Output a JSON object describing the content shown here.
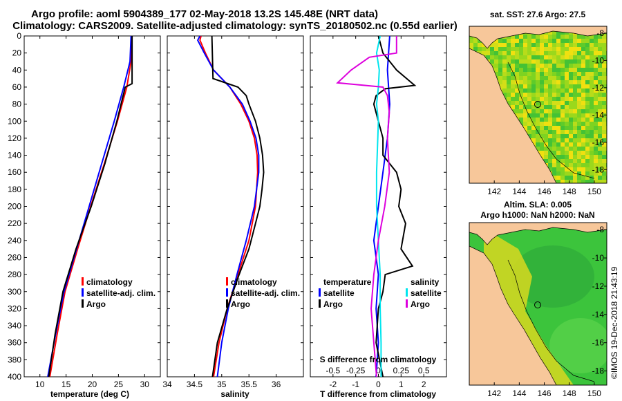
{
  "title": {
    "line1": "Argo profile: aoml 5904389_177 02-May-2018 13.2S 145.48E (NRT data)",
    "line2": "Climatology: CARS2009. Satellite-adjusted climatology: synTS_20180502.nc (0.55d earlier)"
  },
  "watermark": "©IMOS 19-Dec-2018 21:43:19",
  "colors": {
    "climatology": "#ff0000",
    "satellite": "#0000ff",
    "argo": "#000000",
    "sal_argo": "#dd00dd",
    "sal_sat": "#00e5ee",
    "land": "#f7c79a"
  },
  "chart_data": [
    {
      "type": "line",
      "xlabel": "temperature (deg C)",
      "ylabel": "",
      "xlim": [
        7,
        33
      ],
      "ylim": [
        400,
        0
      ],
      "xticks": [
        10,
        15,
        20,
        25,
        30
      ],
      "yticks": [
        0,
        20,
        40,
        60,
        80,
        100,
        120,
        140,
        160,
        180,
        200,
        220,
        240,
        260,
        280,
        300,
        320,
        340,
        360,
        380,
        400
      ],
      "legend": [
        "climatology",
        "satellite-adj. clim.",
        "Argo"
      ],
      "series": [
        {
          "name": "climatology",
          "depth": [
            0,
            30,
            60,
            100,
            150,
            200,
            250,
            300,
            350,
            400
          ],
          "values": [
            27.6,
            27.4,
            26.6,
            24.8,
            22.3,
            19.7,
            17.2,
            14.8,
            13.3,
            11.9
          ]
        },
        {
          "name": "satellite-adj. clim.",
          "depth": [
            0,
            30,
            60,
            100,
            150,
            200,
            250,
            300,
            350,
            400
          ],
          "values": [
            27.4,
            27.2,
            26.0,
            24.2,
            21.8,
            19.4,
            17.0,
            14.6,
            13.0,
            11.5
          ]
        },
        {
          "name": "Argo",
          "depth": [
            0,
            50,
            56,
            60,
            100,
            150,
            200,
            250,
            300,
            350,
            400
          ],
          "values": [
            27.6,
            27.6,
            27.6,
            26.3,
            24.7,
            22.4,
            19.8,
            16.9,
            14.4,
            12.9,
            11.7
          ]
        }
      ]
    },
    {
      "type": "line",
      "xlabel": "salinity",
      "xlim": [
        34,
        36.5
      ],
      "ylim": [
        400,
        0
      ],
      "xticks": [
        34,
        34.5,
        35,
        35.5,
        36
      ],
      "legend": [
        "climatology",
        "satellite-adj. clim.",
        "Argo"
      ],
      "series": [
        {
          "name": "climatology",
          "depth": [
            0,
            5,
            20,
            40,
            60,
            80,
            100,
            120,
            140,
            160,
            200,
            240,
            280,
            320,
            360,
            400
          ],
          "values": [
            34.62,
            34.6,
            34.7,
            34.85,
            35.15,
            35.35,
            35.5,
            35.6,
            35.65,
            35.66,
            35.62,
            35.5,
            35.3,
            35.1,
            34.95,
            34.85
          ]
        },
        {
          "name": "satellite-adj. clim.",
          "depth": [
            0,
            5,
            20,
            40,
            60,
            80,
            100,
            120,
            140,
            160,
            200,
            240,
            280,
            320,
            360,
            400
          ],
          "values": [
            34.6,
            34.56,
            34.68,
            34.85,
            35.15,
            35.38,
            35.52,
            35.63,
            35.68,
            35.68,
            35.6,
            35.45,
            35.28,
            35.12,
            35.0,
            34.92
          ]
        },
        {
          "name": "Argo",
          "depth": [
            0,
            25,
            50,
            60,
            70,
            80,
            100,
            120,
            140,
            160,
            180,
            200,
            220,
            250,
            280,
            320,
            360,
            400
          ],
          "values": [
            34.82,
            34.83,
            34.84,
            35.3,
            35.45,
            35.5,
            35.62,
            35.7,
            35.75,
            35.77,
            35.74,
            35.7,
            35.62,
            35.5,
            35.32,
            35.1,
            34.92,
            34.83
          ]
        }
      ]
    },
    {
      "type": "line",
      "xlabel": "T difference from climatology",
      "xlabel_top": "S difference from climatology",
      "xlim": [
        -3,
        3
      ],
      "ylim": [
        400,
        0
      ],
      "xticks": [
        -2,
        -1,
        0,
        1,
        2
      ],
      "xticks_top": [
        -0.5,
        -0.25,
        0,
        0.25,
        0.5
      ],
      "xlim_top": [
        -0.75,
        0.75
      ],
      "legend": [
        "temperature",
        "satellite",
        "Argo",
        "salinity",
        "satellite",
        "Argo"
      ],
      "series": [
        {
          "name": "T satellite",
          "axis": "bottom",
          "depth": [
            0,
            40,
            80,
            120,
            160,
            200,
            240,
            280,
            320,
            360,
            400
          ],
          "values": [
            0.5,
            0.4,
            0.5,
            0.4,
            0.2,
            0.0,
            -0.2,
            0.0,
            -0.1,
            0.0,
            -0.1
          ]
        },
        {
          "name": "T Argo",
          "axis": "bottom",
          "depth": [
            0,
            20,
            40,
            58,
            62,
            70,
            80,
            100,
            120,
            140,
            160,
            180,
            200,
            220,
            250,
            270,
            280,
            300,
            320,
            360,
            400
          ],
          "values": [
            0.0,
            0.2,
            0.8,
            1.6,
            0.3,
            -0.1,
            -0.2,
            0.0,
            0.2,
            0.2,
            0.8,
            1.0,
            0.9,
            1.2,
            1.0,
            1.5,
            0.3,
            0.2,
            0.0,
            -0.1,
            0.2
          ]
        },
        {
          "name": "S satellite",
          "axis": "top",
          "depth": [
            0,
            20,
            40,
            60,
            80,
            100,
            130,
            160,
            200,
            240,
            280,
            320,
            360,
            400
          ],
          "values": [
            0.02,
            -0.02,
            0.01,
            0.0,
            -0.02,
            0.0,
            -0.01,
            -0.02,
            -0.02,
            0.0,
            0.02,
            0.02,
            0.03,
            0.03
          ]
        },
        {
          "name": "S Argo",
          "axis": "top",
          "depth": [
            0,
            20,
            25,
            40,
            55,
            60,
            70,
            90,
            120,
            160,
            200,
            240,
            280,
            320,
            360,
            400
          ],
          "values": [
            0.2,
            0.2,
            -0.1,
            -0.3,
            -0.45,
            0.05,
            0.1,
            0.12,
            0.1,
            0.12,
            0.07,
            0.0,
            -0.05,
            -0.08,
            -0.05,
            -0.02
          ]
        }
      ]
    },
    {
      "type": "heatmap",
      "title": "sat. SST: 27.6 Argo: 27.5",
      "xlim": [
        140,
        151
      ],
      "ylim": [
        -19,
        -7.5
      ],
      "xticks": [
        142,
        144,
        146,
        148,
        150
      ],
      "yticks": [
        -8,
        -10,
        -12,
        -14,
        -16,
        -18
      ],
      "argo_position": {
        "lon": 145.48,
        "lat": -13.2
      }
    },
    {
      "type": "heatmap",
      "title": "Altim. SLA: 0.005",
      "subtitle": "Argo h1000: NaN h2000: NaN",
      "xlim": [
        140,
        151
      ],
      "ylim": [
        -19,
        -7.5
      ],
      "xticks": [
        142,
        144,
        146,
        148,
        150
      ],
      "yticks": [
        -8,
        -10,
        -12,
        -14,
        -16,
        -18
      ],
      "argo_position": {
        "lon": 145.48,
        "lat": -13.2
      }
    }
  ]
}
